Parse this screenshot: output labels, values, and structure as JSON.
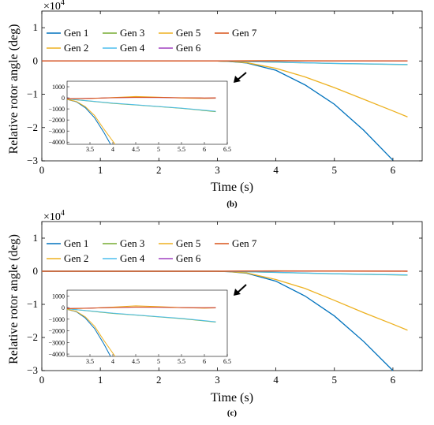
{
  "figure": {
    "panel_labels": [
      "(b)",
      "(c)"
    ]
  },
  "chart_data": [
    {
      "type": "line",
      "panel": "(b)",
      "xlabel": "Time (s)",
      "ylabel": "Relative rotor angle (deg)",
      "xlim": [
        0,
        6.5
      ],
      "ylim": [
        -3,
        1.5
      ],
      "y_multiplier": "×10^4",
      "xticks": [
        0,
        1,
        2,
        3,
        4,
        5,
        6
      ],
      "yticks": [
        -3,
        -2,
        -1,
        0,
        1
      ],
      "grid": false,
      "legend_position": "top-left",
      "series": [
        {
          "name": "Gen 1",
          "color": "#0072BD",
          "x": [
            0,
            3.0,
            3.2,
            3.5,
            4.0,
            4.5,
            5.0,
            5.5,
            6.0
          ],
          "y": [
            0,
            0,
            -0.015,
            -0.06,
            -0.28,
            -0.72,
            -1.3,
            -2.08,
            -2.98
          ]
        },
        {
          "name": "Gen 2",
          "color": "#EDB120",
          "x": [
            0,
            3.0,
            3.2,
            3.5,
            4.0,
            4.5,
            5.0,
            5.5,
            6.0,
            6.25
          ],
          "y": [
            0,
            0,
            -0.012,
            -0.05,
            -0.22,
            -0.48,
            -0.8,
            -1.15,
            -1.5,
            -1.68
          ]
        },
        {
          "name": "Gen 3",
          "color": "#77AC30",
          "x": [
            0,
            3.0,
            3.5,
            4.0,
            5.0,
            6.25
          ],
          "y": [
            0,
            0,
            -0.015,
            -0.035,
            -0.075,
            -0.11
          ]
        },
        {
          "name": "Gen 4",
          "color": "#4DBEEE",
          "x": [
            0,
            3.0,
            3.5,
            4.0,
            5.0,
            6.25
          ],
          "y": [
            0,
            0,
            -0.014,
            -0.033,
            -0.072,
            -0.105
          ]
        },
        {
          "name": "Gen 5",
          "color": "#EDB120",
          "x": [
            0,
            3.0,
            3.5,
            4.0,
            5.0,
            6.25
          ],
          "y": [
            0,
            0,
            0.006,
            0.01,
            0.004,
            0.0
          ]
        },
        {
          "name": "Gen 6",
          "color": "#A040C0",
          "x": [
            0,
            3.0,
            3.5,
            4.0,
            5.0,
            6.25
          ],
          "y": [
            0,
            0,
            0.003,
            0.004,
            0.003,
            0.002
          ]
        },
        {
          "name": "Gen 7",
          "color": "#D95319",
          "x": [
            0,
            3.0,
            3.5,
            4.0,
            5.0,
            6.25
          ],
          "y": [
            0,
            0,
            0.004,
            0.006,
            0.004,
            0.002
          ]
        }
      ],
      "inset": {
        "xlim": [
          3.0,
          6.5
        ],
        "ylim": [
          -4200,
          1500
        ],
        "xticks": [
          3.5,
          4,
          4.5,
          5,
          5.5,
          6,
          6.5
        ],
        "yticks": [
          1000,
          0,
          -1000,
          -2000,
          -3000,
          -4000
        ],
        "series": [
          {
            "name": "Gen 1",
            "color": "#0072BD",
            "x": [
              3.0,
              3.2,
              3.4,
              3.6,
              3.8,
              3.95
            ],
            "y": [
              -150,
              -350,
              -900,
              -1800,
              -3100,
              -4200
            ]
          },
          {
            "name": "Gen 2",
            "color": "#EDB120",
            "x": [
              3.0,
              3.2,
              3.4,
              3.6,
              3.8,
              4.05
            ],
            "y": [
              -150,
              -320,
              -800,
              -1600,
              -2800,
              -4200
            ]
          },
          {
            "name": "Gen 3",
            "color": "#77AC30",
            "x": [
              3.0,
              3.5,
              4.0,
              4.5,
              5.0,
              5.5,
              6.0,
              6.25
            ],
            "y": [
              -100,
              -300,
              -500,
              -650,
              -800,
              -950,
              -1150,
              -1250
            ]
          },
          {
            "name": "Gen 4",
            "color": "#4DBEEE",
            "x": [
              3.0,
              3.5,
              4.0,
              4.5,
              5.0,
              5.5,
              6.0,
              6.25
            ],
            "y": [
              -100,
              -280,
              -480,
              -630,
              -780,
              -930,
              -1120,
              -1220
            ]
          },
          {
            "name": "Gen 5",
            "color": "#EDB120",
            "x": [
              3.0,
              3.5,
              4.0,
              4.5,
              5.0,
              5.5,
              6.0,
              6.25
            ],
            "y": [
              -100,
              -60,
              20,
              120,
              60,
              -20,
              -60,
              -40
            ]
          },
          {
            "name": "Gen 6",
            "color": "#A040C0",
            "x": [
              3.0,
              3.5,
              4.0,
              4.5,
              5.0,
              5.5,
              6.0,
              6.25
            ],
            "y": [
              -80,
              -40,
              0,
              30,
              20,
              0,
              -20,
              -20
            ]
          },
          {
            "name": "Gen 7",
            "color": "#D95319",
            "x": [
              3.0,
              3.5,
              4.0,
              4.5,
              5.0,
              5.5,
              6.0,
              6.25
            ],
            "y": [
              -90,
              -50,
              10,
              50,
              40,
              0,
              -10,
              0
            ]
          }
        ]
      }
    },
    {
      "type": "line",
      "panel": "(c)",
      "xlabel": "Time (s)",
      "ylabel": "Relative rotor angle (deg)",
      "xlim": [
        0,
        6.5
      ],
      "ylim": [
        -3,
        1.5
      ],
      "y_multiplier": "×10^4",
      "xticks": [
        0,
        1,
        2,
        3,
        4,
        5,
        6
      ],
      "yticks": [
        -3,
        -2,
        -1,
        0,
        1
      ],
      "grid": false,
      "legend_position": "top-left",
      "series": [
        {
          "name": "Gen 1",
          "color": "#0072BD",
          "x": [
            0,
            3.0,
            3.2,
            3.5,
            4.0,
            4.5,
            5.0,
            5.5,
            6.0
          ],
          "y": [
            0,
            0,
            -0.015,
            -0.06,
            -0.3,
            -0.75,
            -1.35,
            -2.12,
            -3.0
          ]
        },
        {
          "name": "Gen 2",
          "color": "#EDB120",
          "x": [
            0,
            3.0,
            3.2,
            3.5,
            4.0,
            4.5,
            5.0,
            5.5,
            6.0,
            6.25
          ],
          "y": [
            0,
            0,
            -0.012,
            -0.05,
            -0.25,
            -0.52,
            -0.88,
            -1.25,
            -1.6,
            -1.78
          ]
        },
        {
          "name": "Gen 3",
          "color": "#77AC30",
          "x": [
            0,
            3.0,
            3.5,
            4.0,
            5.0,
            6.25
          ],
          "y": [
            0,
            0,
            -0.015,
            -0.035,
            -0.078,
            -0.115
          ]
        },
        {
          "name": "Gen 4",
          "color": "#4DBEEE",
          "x": [
            0,
            3.0,
            3.5,
            4.0,
            5.0,
            6.25
          ],
          "y": [
            0,
            0,
            -0.014,
            -0.033,
            -0.075,
            -0.11
          ]
        },
        {
          "name": "Gen 5",
          "color": "#EDB120",
          "x": [
            0,
            3.0,
            3.5,
            4.0,
            5.0,
            6.25
          ],
          "y": [
            0,
            0,
            0.005,
            0.01,
            0.004,
            0.0
          ]
        },
        {
          "name": "Gen 6",
          "color": "#A040C0",
          "x": [
            0,
            3.0,
            3.5,
            4.0,
            5.0,
            6.25
          ],
          "y": [
            0,
            0,
            0.003,
            0.004,
            0.003,
            0.002
          ]
        },
        {
          "name": "Gen 7",
          "color": "#D95319",
          "x": [
            0,
            3.0,
            3.5,
            4.0,
            5.0,
            6.25
          ],
          "y": [
            0,
            0,
            0.004,
            0.006,
            0.004,
            0.002
          ]
        }
      ],
      "inset": {
        "xlim": [
          3.0,
          6.5
        ],
        "ylim": [
          -4200,
          1500
        ],
        "xticks": [
          3.5,
          4,
          4.5,
          5,
          5.5,
          6,
          6.5
        ],
        "yticks": [
          1000,
          0,
          -1000,
          -2000,
          -3000,
          -4000
        ],
        "series": [
          {
            "name": "Gen 1",
            "color": "#0072BD",
            "x": [
              3.0,
              3.2,
              3.4,
              3.6,
              3.8,
              3.95
            ],
            "y": [
              -150,
              -350,
              -900,
              -1800,
              -3100,
              -4200
            ]
          },
          {
            "name": "Gen 2",
            "color": "#EDB120",
            "x": [
              3.0,
              3.2,
              3.4,
              3.6,
              3.8,
              4.05
            ],
            "y": [
              -150,
              -320,
              -800,
              -1600,
              -2800,
              -4200
            ]
          },
          {
            "name": "Gen 3",
            "color": "#77AC30",
            "x": [
              3.0,
              3.5,
              4.0,
              4.5,
              5.0,
              5.5,
              6.0,
              6.25
            ],
            "y": [
              -100,
              -300,
              -500,
              -650,
              -800,
              -950,
              -1150,
              -1250
            ]
          },
          {
            "name": "Gen 4",
            "color": "#4DBEEE",
            "x": [
              3.0,
              3.5,
              4.0,
              4.5,
              5.0,
              5.5,
              6.0,
              6.25
            ],
            "y": [
              -100,
              -280,
              -480,
              -630,
              -780,
              -930,
              -1120,
              -1220
            ]
          },
          {
            "name": "Gen 5",
            "color": "#EDB120",
            "x": [
              3.0,
              3.5,
              4.0,
              4.5,
              5.0,
              5.5,
              6.0,
              6.25
            ],
            "y": [
              -100,
              -50,
              40,
              150,
              80,
              0,
              -50,
              -30
            ]
          },
          {
            "name": "Gen 6",
            "color": "#A040C0",
            "x": [
              3.0,
              3.5,
              4.0,
              4.5,
              5.0,
              5.5,
              6.0,
              6.25
            ],
            "y": [
              -80,
              -40,
              0,
              30,
              20,
              0,
              -20,
              -20
            ]
          },
          {
            "name": "Gen 7",
            "color": "#D95319",
            "x": [
              3.0,
              3.5,
              4.0,
              4.5,
              5.0,
              5.5,
              6.0,
              6.25
            ],
            "y": [
              -90,
              -50,
              10,
              50,
              40,
              0,
              -10,
              0
            ]
          }
        ]
      }
    }
  ]
}
